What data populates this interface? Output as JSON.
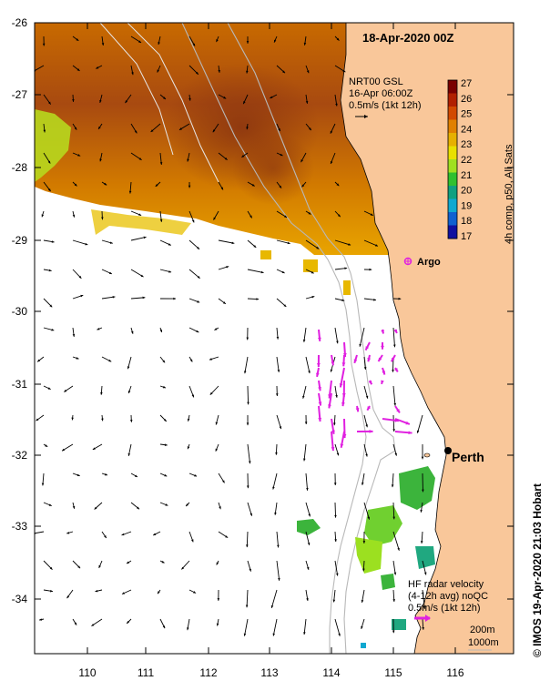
{
  "title": "18-Apr-2020 00Z",
  "axes": {
    "x_ticks": [
      "110",
      "111",
      "112",
      "113",
      "114",
      "115",
      "116"
    ],
    "y_ticks": [
      "-26",
      "-27",
      "-28",
      "-29",
      "-30",
      "-31",
      "-32",
      "-33",
      "-34"
    ]
  },
  "gsl_annotation": {
    "line1": "NRT00 GSL",
    "line2": "16-Apr 06:00Z",
    "line3": "0.5m/s (1kt 12h)"
  },
  "colorbar": {
    "ticks": [
      "27",
      "26",
      "25",
      "24",
      "23",
      "22",
      "21",
      "20",
      "19",
      "18",
      "17"
    ],
    "label": "4h comp, p50, All Sats",
    "colors": [
      "#7a0000",
      "#b12000",
      "#d24a00",
      "#e08000",
      "#e6b000",
      "#e8e000",
      "#a0e020",
      "#30c030",
      "#10a080",
      "#10a8d0",
      "#1060d0",
      "#1010a0"
    ]
  },
  "places": {
    "argo": "Argo",
    "perth": "Perth"
  },
  "hf_annotation": {
    "line1": "HF radar velocity",
    "line2": "(4-12h avg) noQC",
    "line3": "0.5m/s (1kt 12h)"
  },
  "contours": {
    "c200": "200m",
    "c1000": "1000m"
  },
  "credit": "© IMOS 19-Apr-2020 21:03 Hobart",
  "colors": {
    "land": "#f9c79a",
    "argo": "#e020e0",
    "hf_arrow": "#e020e0",
    "arrow": "#000000",
    "contour": "#b8b8b8"
  }
}
